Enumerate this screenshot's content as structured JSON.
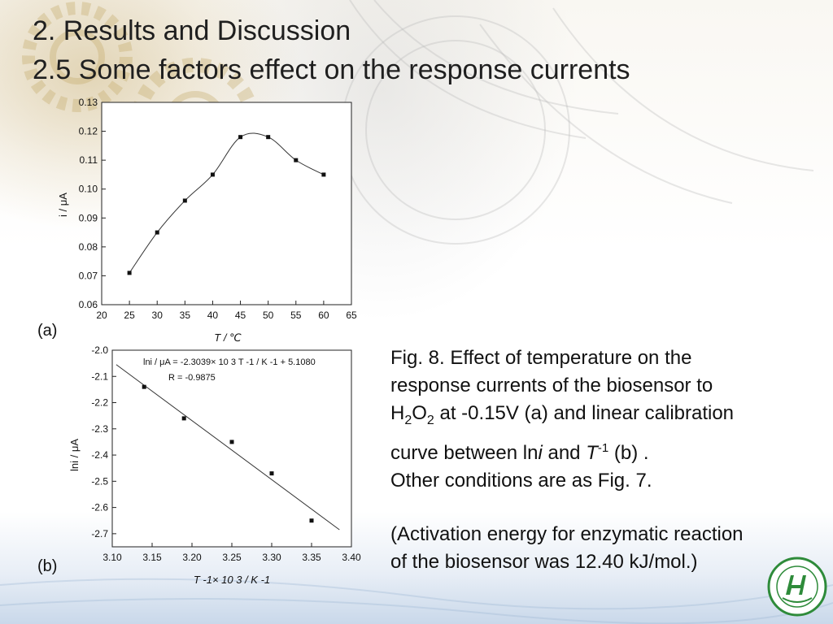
{
  "slide": {
    "title_line1": "2. Results and Discussion",
    "title_line2": "2.5 Some factors effect on the response currents",
    "label_a": "(a)",
    "label_b": "(b)"
  },
  "caption": {
    "line1_prefix": "Fig. 8.  Effect of temperature on the",
    "line2": "response currents of the biosensor to",
    "h2o2_h": "H",
    "h2o2_sub1": "2",
    "h2o2_o": "O",
    "h2o2_sub2": "2",
    "line3_rest": " at -0.15V (a) and linear calibration",
    "line4_part1": "curve between ln",
    "line4_i": "i",
    "line4_and": " and ",
    "line4_T": "T",
    "line4_sup": "-1",
    "line4_end": " (b) .",
    "line5": "Other conditions are as Fig. 7.",
    "note_line1": "(Activation energy  for enzymatic reaction",
    "note_line2": "of the biosensor was 12.40 kJ/mol.)"
  },
  "colors": {
    "gear_tint": "#c4a868",
    "bottom_band": "#c9d8ea",
    "logo_green": "#2e8b3a"
  },
  "icons": {
    "logo": "university-seal-icon"
  },
  "chart_data": [
    {
      "type": "line",
      "panel": "(a)",
      "title": "",
      "xlabel": "T / ℃",
      "ylabel": "i / μA",
      "xlim": [
        20,
        65
      ],
      "ylim": [
        0.06,
        0.13
      ],
      "xticks": [
        "20",
        "25",
        "30",
        "35",
        "40",
        "45",
        "50",
        "55",
        "60",
        "65"
      ],
      "yticks": [
        "0.06",
        "0.07",
        "0.08",
        "0.09",
        "0.10",
        "0.11",
        "0.12",
        "0.13"
      ],
      "x": [
        25,
        30,
        35,
        40,
        45,
        50,
        55,
        60
      ],
      "y": [
        0.071,
        0.085,
        0.096,
        0.105,
        0.118,
        0.118,
        0.11,
        0.105
      ],
      "smooth_curve": true,
      "grid": false
    },
    {
      "type": "scatter",
      "panel": "(b)",
      "title": "",
      "xlabel": "T -1× 10 3 / K -1",
      "ylabel": "lni / μA",
      "xlim": [
        3.1,
        3.4
      ],
      "ylim": [
        -2.75,
        -2.0
      ],
      "xticks": [
        "3.10",
        "3.15",
        "3.20",
        "3.25",
        "3.30",
        "3.35",
        "3.40"
      ],
      "yticks": [
        "-2.0",
        "-2.1",
        "-2.2",
        "-2.3",
        "-2.4",
        "-2.5",
        "-2.6",
        "-2.7"
      ],
      "x": [
        3.14,
        3.19,
        3.25,
        3.3,
        3.35
      ],
      "y": [
        -2.14,
        -2.26,
        -2.35,
        -2.47,
        -2.65
      ],
      "fit_line": {
        "x": [
          3.105,
          3.385
        ],
        "y": [
          -2.055,
          -2.685
        ]
      },
      "annotation_line1": "lni / μA = -2.3039× 10 3 T -1 / K -1 + 5.1080",
      "annotation_line2": "R = -0.9875",
      "grid": false
    }
  ]
}
